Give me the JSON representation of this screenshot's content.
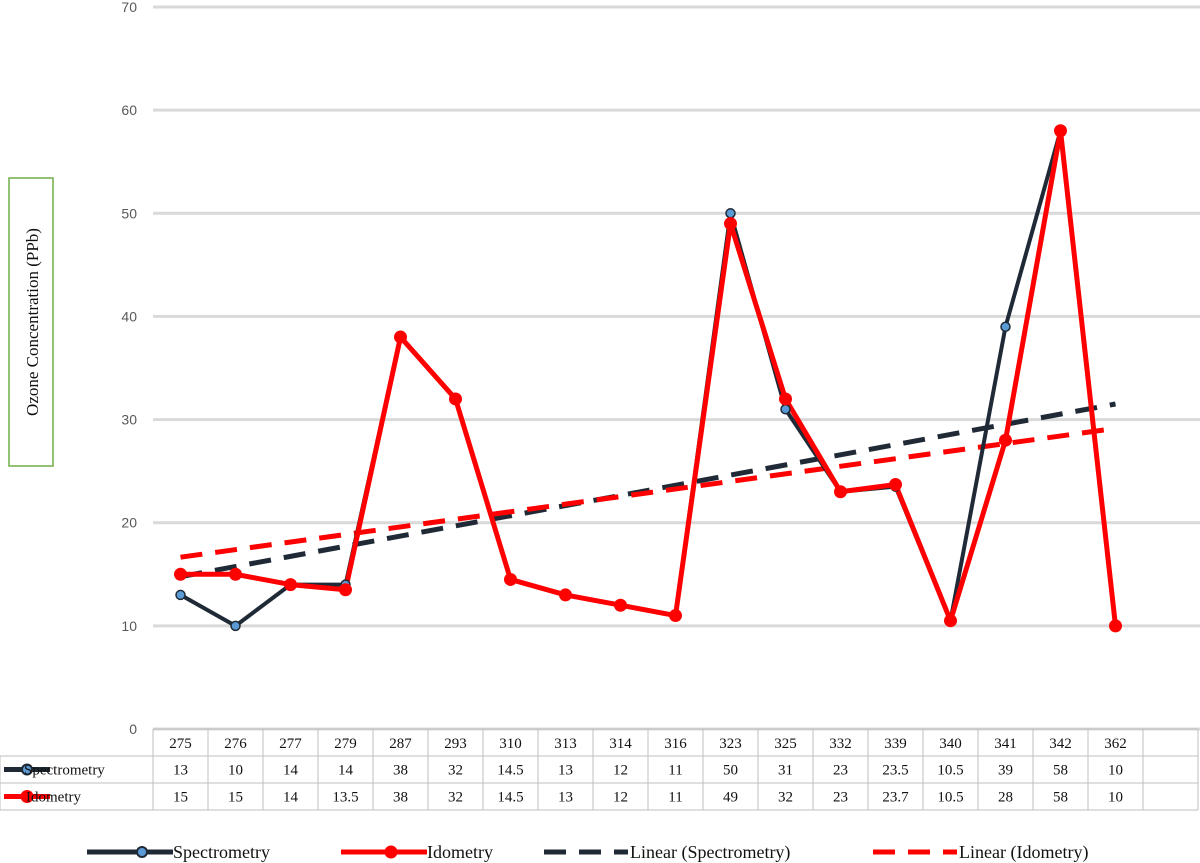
{
  "chart_data": {
    "type": "line",
    "ylabel": "Ozone Concentration (PPb)",
    "ylim": [
      0,
      70
    ],
    "yticks": [
      "0",
      "10",
      "20",
      "30",
      "40",
      "50",
      "60",
      "70"
    ],
    "categories": [
      "275",
      "276",
      "277",
      "279",
      "287",
      "293",
      "310",
      "313",
      "314",
      "316",
      "323",
      "325",
      "332",
      "339",
      "340",
      "341",
      "342",
      "362"
    ],
    "series": [
      {
        "name": "Spectrometry",
        "color": "#1f2a36",
        "marker": "circle-blue",
        "values": [
          13,
          10,
          14,
          14,
          38,
          32,
          14.5,
          13,
          12,
          11,
          50,
          31,
          23,
          23.5,
          10.5,
          39,
          58,
          10
        ],
        "labels": [
          "13",
          "10",
          "14",
          "14",
          "38",
          "32",
          "14.5",
          "13",
          "12",
          "11",
          "50",
          "31",
          "23",
          "23.5",
          "10.5",
          "39",
          "58",
          "10"
        ]
      },
      {
        "name": "Idometry",
        "color": "#ff0000",
        "marker": "circle-red",
        "values": [
          15,
          15,
          14,
          13.5,
          38,
          32,
          14.5,
          13,
          12,
          11,
          49,
          32,
          23,
          23.7,
          10.5,
          28,
          58,
          10
        ],
        "labels": [
          "15",
          "15",
          "14",
          "13.5",
          "38",
          "32",
          "14.5",
          "13",
          "12",
          "11",
          "49",
          "32",
          "23",
          "23.7",
          "10.5",
          "28",
          "58",
          "10"
        ]
      }
    ],
    "trendlines": [
      {
        "name": "Linear (Spectrometry)",
        "of": "Spectrometry",
        "type": "linear",
        "color": "#1f2a36",
        "style": "dashed"
      },
      {
        "name": "Linear (Idometry)",
        "of": "Idometry",
        "type": "linear",
        "color": "#ff0000",
        "style": "dashed"
      }
    ],
    "grid": true,
    "data_table": true,
    "legend_position": "bottom"
  }
}
